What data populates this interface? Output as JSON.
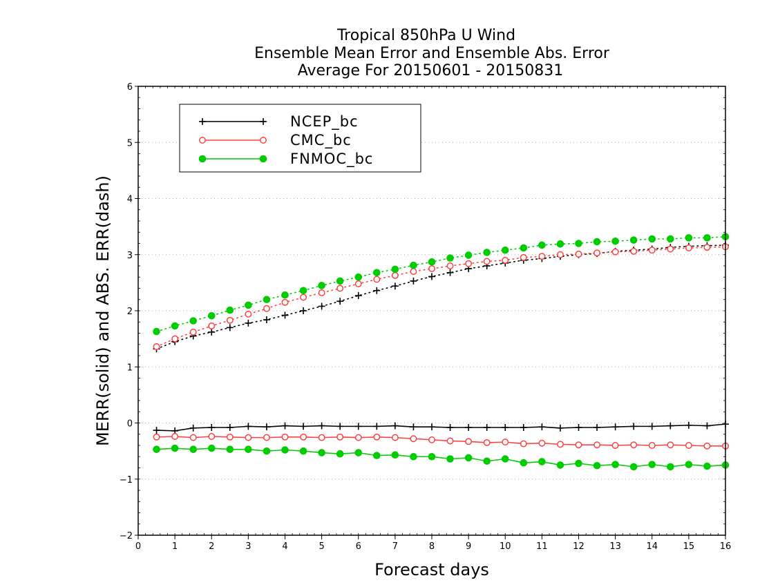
{
  "chart_data": {
    "type": "line",
    "title": [
      "Tropical 850hPa U Wind",
      "Ensemble Mean Error and Ensemble Abs. Error",
      "Average For 20150601 - 20150831"
    ],
    "xlabel": "Forecast days",
    "ylabel": "MERR(solid) and ABS. ERR(dash)",
    "xlim": [
      0,
      16
    ],
    "ylim": [
      -2,
      6
    ],
    "xticks": [
      0,
      1,
      2,
      3,
      4,
      5,
      6,
      7,
      8,
      9,
      10,
      11,
      12,
      13,
      14,
      15,
      16
    ],
    "yticks": [
      -2,
      -1,
      0,
      1,
      2,
      3,
      4,
      5,
      6
    ],
    "ytick_labels": [
      "−2",
      "−1",
      "0",
      "1",
      "2",
      "3",
      "4",
      "5",
      "6"
    ],
    "grid": "horizontal dotted",
    "legend_position": "top-left",
    "x": [
      0.5,
      1,
      1.5,
      2,
      2.5,
      3,
      3.5,
      4,
      4.5,
      5,
      5.5,
      6,
      6.5,
      7,
      7.5,
      8,
      8.5,
      9,
      9.5,
      10,
      10.5,
      11,
      11.5,
      12,
      12.5,
      13,
      13.5,
      14,
      14.5,
      15,
      15.5,
      16
    ],
    "series": [
      {
        "name": "NCEP_bc",
        "color": "#000000",
        "marker": "plus",
        "merr": [
          -0.13,
          -0.14,
          -0.09,
          -0.08,
          -0.08,
          -0.06,
          -0.07,
          -0.05,
          -0.06,
          -0.05,
          -0.06,
          -0.06,
          -0.06,
          -0.05,
          -0.07,
          -0.07,
          -0.08,
          -0.08,
          -0.08,
          -0.08,
          -0.08,
          -0.07,
          -0.09,
          -0.08,
          -0.08,
          -0.07,
          -0.06,
          -0.06,
          -0.05,
          -0.04,
          -0.05,
          -0.02
        ],
        "abs_err": [
          1.32,
          1.45,
          1.55,
          1.62,
          1.7,
          1.78,
          1.84,
          1.92,
          2.0,
          2.08,
          2.17,
          2.27,
          2.36,
          2.44,
          2.53,
          2.61,
          2.68,
          2.75,
          2.8,
          2.85,
          2.9,
          2.93,
          2.97,
          3.0,
          3.02,
          3.06,
          3.08,
          3.1,
          3.13,
          3.15,
          3.16,
          3.17
        ]
      },
      {
        "name": "CMC_bc",
        "color": "#ff4040",
        "marker": "open-circle",
        "merr": [
          -0.25,
          -0.24,
          -0.26,
          -0.24,
          -0.25,
          -0.26,
          -0.26,
          -0.25,
          -0.25,
          -0.26,
          -0.25,
          -0.26,
          -0.25,
          -0.26,
          -0.28,
          -0.3,
          -0.32,
          -0.33,
          -0.35,
          -0.34,
          -0.37,
          -0.36,
          -0.38,
          -0.39,
          -0.39,
          -0.4,
          -0.39,
          -0.4,
          -0.39,
          -0.4,
          -0.41,
          -0.41
        ],
        "abs_err": [
          1.36,
          1.5,
          1.62,
          1.73,
          1.83,
          1.94,
          2.04,
          2.15,
          2.24,
          2.32,
          2.4,
          2.48,
          2.56,
          2.63,
          2.7,
          2.75,
          2.8,
          2.84,
          2.88,
          2.9,
          2.95,
          2.97,
          3.0,
          3.01,
          3.03,
          3.05,
          3.06,
          3.08,
          3.1,
          3.12,
          3.13,
          3.14
        ]
      },
      {
        "name": "FNMOC_bc",
        "color": "#00cc00",
        "marker": "filled-circle",
        "merr": [
          -0.47,
          -0.45,
          -0.47,
          -0.45,
          -0.47,
          -0.47,
          -0.5,
          -0.48,
          -0.5,
          -0.53,
          -0.55,
          -0.53,
          -0.58,
          -0.57,
          -0.6,
          -0.6,
          -0.64,
          -0.62,
          -0.68,
          -0.64,
          -0.71,
          -0.69,
          -0.75,
          -0.72,
          -0.76,
          -0.74,
          -0.78,
          -0.74,
          -0.78,
          -0.74,
          -0.77,
          -0.75
        ],
        "abs_err": [
          1.63,
          1.73,
          1.82,
          1.91,
          2.01,
          2.1,
          2.2,
          2.28,
          2.36,
          2.45,
          2.53,
          2.6,
          2.68,
          2.74,
          2.81,
          2.87,
          2.94,
          2.99,
          3.04,
          3.08,
          3.12,
          3.17,
          3.19,
          3.2,
          3.23,
          3.24,
          3.26,
          3.28,
          3.28,
          3.3,
          3.3,
          3.32
        ]
      }
    ]
  }
}
